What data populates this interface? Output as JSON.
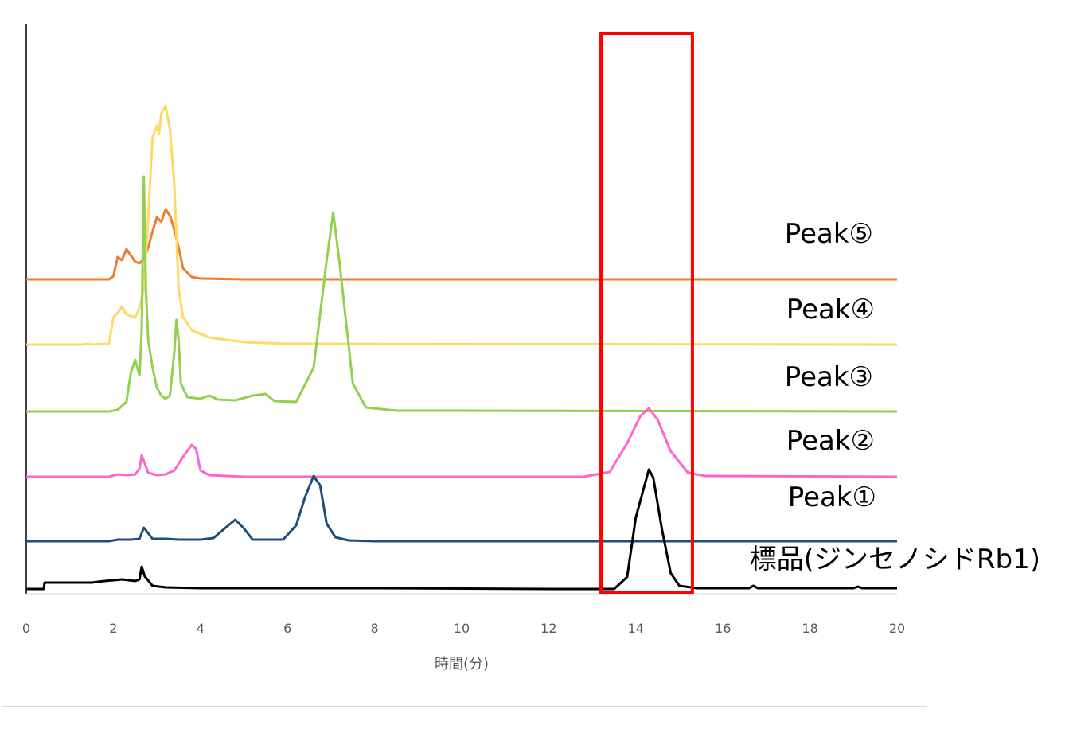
{
  "chart_data": {
    "type": "line",
    "title": "",
    "xlabel": "時間(分)",
    "ylabel": "",
    "xlim": [
      0,
      20
    ],
    "x_ticks": [
      "0",
      "2",
      "4",
      "6",
      "8",
      "10",
      "12",
      "14",
      "16",
      "18",
      "20"
    ],
    "grid": false,
    "legend": "labels at right end of each trace",
    "highlight_box_x": [
      13.2,
      15.3
    ],
    "series": [
      {
        "name": "Peak⑤",
        "color": "#ed7d31",
        "baseline": 28,
        "points": [
          [
            0,
            0
          ],
          [
            1.9,
            0
          ],
          [
            2.0,
            4
          ],
          [
            2.1,
            28
          ],
          [
            2.2,
            24
          ],
          [
            2.3,
            38
          ],
          [
            2.4,
            30
          ],
          [
            2.5,
            22
          ],
          [
            2.6,
            20
          ],
          [
            2.7,
            26
          ],
          [
            2.8,
            40
          ],
          [
            2.9,
            60
          ],
          [
            3.0,
            78
          ],
          [
            3.1,
            72
          ],
          [
            3.2,
            88
          ],
          [
            3.3,
            80
          ],
          [
            3.4,
            62
          ],
          [
            3.5,
            40
          ],
          [
            3.6,
            14
          ],
          [
            3.8,
            3
          ],
          [
            4.0,
            1
          ],
          [
            5,
            0
          ],
          [
            20,
            0
          ]
        ]
      },
      {
        "name": "Peak④",
        "color": "#ffd966",
        "baseline": 19,
        "points": [
          [
            0,
            0
          ],
          [
            1.3,
            0
          ],
          [
            1.4,
            1
          ],
          [
            1.5,
            0
          ],
          [
            1.9,
            1
          ],
          [
            2.0,
            34
          ],
          [
            2.1,
            40
          ],
          [
            2.2,
            48
          ],
          [
            2.3,
            38
          ],
          [
            2.5,
            34
          ],
          [
            2.6,
            46
          ],
          [
            2.7,
            70
          ],
          [
            2.8,
            160
          ],
          [
            2.9,
            260
          ],
          [
            3.0,
            275
          ],
          [
            3.05,
            265
          ],
          [
            3.1,
            290
          ],
          [
            3.2,
            300
          ],
          [
            3.3,
            270
          ],
          [
            3.4,
            200
          ],
          [
            3.5,
            70
          ],
          [
            3.6,
            35
          ],
          [
            3.8,
            18
          ],
          [
            4.2,
            9
          ],
          [
            5,
            3
          ],
          [
            6,
            1
          ],
          [
            20,
            0
          ]
        ]
      },
      {
        "name": "Peak③",
        "color": "#92d050",
        "baseline": 10,
        "points": [
          [
            0,
            0
          ],
          [
            1.9,
            0
          ],
          [
            2.1,
            2
          ],
          [
            2.3,
            12
          ],
          [
            2.4,
            48
          ],
          [
            2.5,
            65
          ],
          [
            2.6,
            45
          ],
          [
            2.65,
            100
          ],
          [
            2.7,
            295
          ],
          [
            2.75,
            150
          ],
          [
            2.8,
            90
          ],
          [
            2.9,
            55
          ],
          [
            3.0,
            30
          ],
          [
            3.1,
            20
          ],
          [
            3.2,
            16
          ],
          [
            3.3,
            20
          ],
          [
            3.4,
            75
          ],
          [
            3.45,
            115
          ],
          [
            3.5,
            90
          ],
          [
            3.55,
            35
          ],
          [
            3.7,
            18
          ],
          [
            4.0,
            16
          ],
          [
            4.2,
            20
          ],
          [
            4.4,
            15
          ],
          [
            4.8,
            14
          ],
          [
            5.2,
            20
          ],
          [
            5.5,
            22
          ],
          [
            5.7,
            13
          ],
          [
            6.2,
            12
          ],
          [
            6.6,
            55
          ],
          [
            6.9,
            190
          ],
          [
            7.05,
            250
          ],
          [
            7.2,
            185
          ],
          [
            7.5,
            35
          ],
          [
            7.8,
            5
          ],
          [
            8.5,
            1
          ],
          [
            10,
            1
          ],
          [
            20,
            0
          ]
        ]
      },
      {
        "name": "Peak②",
        "color": "#ff66cc",
        "baseline": 1,
        "points": [
          [
            0,
            0
          ],
          [
            1.9,
            0
          ],
          [
            2.1,
            3
          ],
          [
            2.3,
            2
          ],
          [
            2.5,
            3
          ],
          [
            2.6,
            10
          ],
          [
            2.65,
            27
          ],
          [
            2.7,
            20
          ],
          [
            2.8,
            5
          ],
          [
            3.0,
            2
          ],
          [
            3.2,
            3
          ],
          [
            3.4,
            8
          ],
          [
            3.6,
            25
          ],
          [
            3.8,
            40
          ],
          [
            3.9,
            35
          ],
          [
            4.0,
            8
          ],
          [
            4.2,
            2
          ],
          [
            5,
            0
          ],
          [
            12.8,
            0
          ],
          [
            13.4,
            6
          ],
          [
            13.8,
            42
          ],
          [
            14.1,
            76
          ],
          [
            14.3,
            86
          ],
          [
            14.5,
            72
          ],
          [
            14.8,
            32
          ],
          [
            15.2,
            5
          ],
          [
            15.6,
            1
          ],
          [
            20,
            0
          ]
        ]
      },
      {
        "name": "Peak①",
        "color": "#1f4e79",
        "baseline": 0,
        "points": [
          [
            0,
            0
          ],
          [
            1.9,
            0
          ],
          [
            2.1,
            2
          ],
          [
            2.4,
            2
          ],
          [
            2.6,
            3
          ],
          [
            2.7,
            17
          ],
          [
            2.8,
            10
          ],
          [
            2.9,
            3
          ],
          [
            3.2,
            3
          ],
          [
            3.5,
            2
          ],
          [
            4.0,
            2
          ],
          [
            4.3,
            4
          ],
          [
            4.6,
            18
          ],
          [
            4.8,
            27
          ],
          [
            5.0,
            16
          ],
          [
            5.2,
            2
          ],
          [
            5.6,
            2
          ],
          [
            5.9,
            2
          ],
          [
            6.2,
            20
          ],
          [
            6.4,
            55
          ],
          [
            6.6,
            82
          ],
          [
            6.75,
            70
          ],
          [
            6.9,
            22
          ],
          [
            7.1,
            5
          ],
          [
            7.4,
            1
          ],
          [
            8,
            0
          ],
          [
            20,
            0
          ]
        ]
      },
      {
        "name": "標品(ジンセノシドRb1)",
        "color": "#000000",
        "baseline": -59,
        "points": [
          [
            0,
            0
          ],
          [
            0.4,
            0
          ],
          [
            0.42,
            8
          ],
          [
            1.0,
            8
          ],
          [
            1.5,
            8
          ],
          [
            1.8,
            10
          ],
          [
            2.2,
            12
          ],
          [
            2.5,
            10
          ],
          [
            2.6,
            12
          ],
          [
            2.65,
            28
          ],
          [
            2.72,
            16
          ],
          [
            2.9,
            4
          ],
          [
            3.2,
            2
          ],
          [
            4,
            1
          ],
          [
            8,
            1
          ],
          [
            12,
            0
          ],
          [
            13.5,
            0
          ],
          [
            13.8,
            15
          ],
          [
            14.0,
            90
          ],
          [
            14.2,
            130
          ],
          [
            14.3,
            150
          ],
          [
            14.4,
            140
          ],
          [
            14.6,
            75
          ],
          [
            14.8,
            20
          ],
          [
            15.0,
            4
          ],
          [
            15.4,
            1
          ],
          [
            16.6,
            1
          ],
          [
            16.7,
            4
          ],
          [
            16.8,
            1
          ],
          [
            19.0,
            1
          ],
          [
            19.1,
            3
          ],
          [
            19.2,
            1
          ],
          [
            20,
            1
          ]
        ]
      }
    ]
  }
}
